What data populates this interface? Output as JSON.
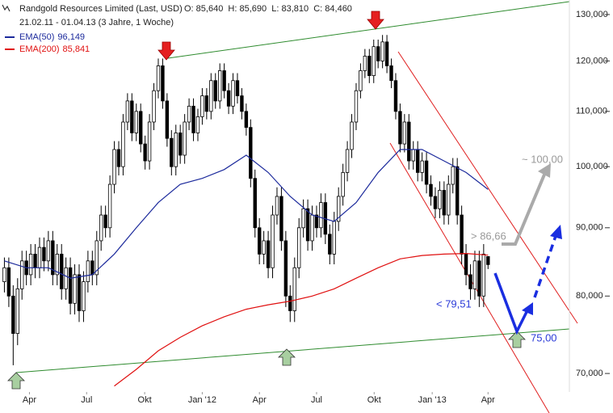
{
  "chart_data": {
    "type": "candlestick",
    "header": {
      "title": "Randgold Resources Limited (Last, USD)",
      "ohlc": "O: 85,640  H: 85,690  L: 83,810  C: 84,460",
      "date_range": "21.02.11 - 01.04.13 (3 Jahre, 1 Woche)"
    },
    "log_scale": true,
    "ylim": [
      67800,
      133300
    ],
    "yticks": [
      {
        "value": 70000,
        "label": "70,000"
      },
      {
        "value": 80000,
        "label": "80,000"
      },
      {
        "value": 90000,
        "label": "90,000"
      },
      {
        "value": 100000,
        "label": "100,000"
      },
      {
        "value": 110000,
        "label": "110,000"
      },
      {
        "value": 120000,
        "label": "120,000"
      },
      {
        "value": 130000,
        "label": "130,000"
      }
    ],
    "xlim": [
      -1,
      128.5
    ],
    "xticks": [
      {
        "value": 5.7,
        "label": "Apr"
      },
      {
        "value": 18.7,
        "label": "Jul"
      },
      {
        "value": 31.9,
        "label": "Okt"
      },
      {
        "value": 45,
        "label": "Jan '12"
      },
      {
        "value": 58,
        "label": "Apr"
      },
      {
        "value": 71,
        "label": "Jul"
      },
      {
        "value": 84.1,
        "label": "Okt"
      },
      {
        "value": 97.3,
        "label": "Jan '13"
      },
      {
        "value": 110,
        "label": "Apr"
      }
    ],
    "open": [
      82000,
      84000,
      80000,
      75000,
      81000,
      85000,
      83000,
      86000,
      84000,
      87000,
      85000,
      88000,
      83000,
      86000,
      81000,
      84000,
      79000,
      83000,
      78000,
      82000,
      85000,
      83000,
      88000,
      92000,
      90000,
      97000,
      103000,
      100000,
      108000,
      112000,
      106000,
      110000,
      104000,
      101000,
      108000,
      114000,
      119000,
      112000,
      105000,
      100000,
      106000,
      102000,
      108000,
      111000,
      106000,
      109000,
      113000,
      110000,
      116000,
      112000,
      118000,
      114000,
      111000,
      116000,
      113000,
      110000,
      107000,
      98000,
      90000,
      86000,
      88000,
      84000,
      92000,
      95000,
      88000,
      80000,
      78000,
      84000,
      90000,
      93000,
      88000,
      92000,
      90000,
      94000,
      89000,
      86000,
      91000,
      95000,
      99000,
      103000,
      108000,
      114000,
      118000,
      121000,
      117000,
      123000,
      120000,
      124000,
      119000,
      116000,
      110000,
      104000,
      108000,
      101000,
      103000,
      99000,
      101000,
      97000,
      95000,
      93000,
      96000,
      92000,
      97000,
      100000,
      92000,
      86000,
      83000,
      81000,
      85000,
      80000,
      85640
    ],
    "high": [
      85500,
      85500,
      81500,
      82500,
      86500,
      86500,
      87500,
      87500,
      88500,
      88500,
      89500,
      89500,
      87500,
      87500,
      85500,
      85500,
      84500,
      84500,
      83500,
      86500,
      86500,
      89500,
      93500,
      93500,
      98500,
      104500,
      104500,
      109500,
      113500,
      113500,
      111500,
      111500,
      105500,
      109500,
      115500,
      120500,
      120500,
      113500,
      106500,
      107500,
      107500,
      109500,
      112500,
      112500,
      110500,
      114500,
      114500,
      117500,
      117500,
      119500,
      119500,
      115500,
      117500,
      117500,
      114500,
      111500,
      108500,
      99500,
      91500,
      89500,
      89500,
      93500,
      96500,
      96500,
      89500,
      81500,
      85500,
      91500,
      94500,
      94500,
      93500,
      93500,
      95500,
      95500,
      90500,
      92500,
      96500,
      100500,
      104500,
      109500,
      115500,
      119500,
      122500,
      122500,
      124500,
      124500,
      125500,
      125500,
      120500,
      117500,
      111500,
      109500,
      109500,
      104500,
      104500,
      102500,
      102500,
      98500,
      96500,
      97500,
      97500,
      98500,
      101500,
      101500,
      93500,
      87500,
      84500,
      86500,
      86500,
      87500,
      85690
    ],
    "low": [
      80500,
      78500,
      71000,
      73500,
      79500,
      81500,
      81500,
      82500,
      82500,
      83500,
      83500,
      81500,
      81500,
      79500,
      79500,
      77500,
      77500,
      76500,
      76500,
      80500,
      81500,
      81500,
      86500,
      88500,
      88500,
      95500,
      98500,
      98500,
      106500,
      104500,
      104500,
      102500,
      99500,
      99500,
      106500,
      112500,
      110500,
      103500,
      98500,
      98500,
      100500,
      100500,
      106500,
      104500,
      104500,
      107500,
      108500,
      108500,
      110500,
      110500,
      112500,
      109500,
      109500,
      111500,
      108500,
      105500,
      96500,
      88500,
      84500,
      84500,
      82500,
      82500,
      90500,
      86500,
      78500,
      76500,
      76500,
      82500,
      88500,
      86500,
      86500,
      88500,
      88500,
      87500,
      84500,
      84500,
      89500,
      93500,
      97500,
      101500,
      106500,
      112500,
      116500,
      115500,
      115500,
      118500,
      118500,
      117500,
      114500,
      108500,
      102500,
      102500,
      99500,
      99500,
      97500,
      97500,
      95500,
      93500,
      91500,
      91500,
      90500,
      90500,
      95500,
      90500,
      84500,
      81500,
      79500,
      79500,
      78500,
      78500,
      83810
    ],
    "close": [
      84000,
      80000,
      75000,
      81000,
      85000,
      83000,
      86000,
      84000,
      87000,
      85000,
      88000,
      83000,
      86000,
      81000,
      84000,
      79000,
      83000,
      78000,
      82000,
      85000,
      83000,
      88000,
      92000,
      90000,
      97000,
      103000,
      100000,
      108000,
      112000,
      106000,
      110000,
      104000,
      101000,
      108000,
      114000,
      119000,
      112000,
      105000,
      100000,
      106000,
      102000,
      108000,
      111000,
      106000,
      109000,
      113000,
      110000,
      116000,
      112000,
      118000,
      114000,
      111000,
      116000,
      113000,
      110000,
      107000,
      98000,
      90000,
      86000,
      88000,
      84000,
      92000,
      95000,
      88000,
      80000,
      78000,
      84000,
      90000,
      93000,
      88000,
      92000,
      90000,
      94000,
      89000,
      86000,
      91000,
      95000,
      99000,
      103000,
      108000,
      114000,
      118000,
      121000,
      117000,
      123000,
      120000,
      124000,
      119000,
      116000,
      110000,
      104000,
      108000,
      101000,
      103000,
      99000,
      101000,
      97000,
      95000,
      93000,
      96000,
      92000,
      97000,
      100000,
      92000,
      86000,
      83000,
      81000,
      85000,
      80000,
      86000,
      84460
    ],
    "indicators": {
      "x": [
        0,
        5,
        10,
        15,
        20,
        25,
        30,
        35,
        40,
        45,
        50,
        55,
        60,
        65,
        70,
        75,
        80,
        85,
        90,
        95,
        100,
        105,
        110
      ],
      "series": [
        {
          "name": "EMA(50)",
          "last_label": "96,149",
          "color": "#1c2a9c",
          "values": [
            85000,
            84000,
            84000,
            82500,
            83000,
            86000,
            90000,
            94000,
            97000,
            98000,
            99500,
            102000,
            99000,
            95000,
            92000,
            91000,
            94000,
            99000,
            103000,
            103000,
            101000,
            99000,
            96149
          ]
        },
        {
          "name": "EMA(200)",
          "last_label": "85,841",
          "color": "#e01010",
          "values": [
            null,
            null,
            null,
            null,
            null,
            68500,
            70500,
            72800,
            74500,
            76000,
            77200,
            78200,
            78800,
            79300,
            80000,
            81000,
            82500,
            84000,
            85300,
            85800,
            86000,
            86100,
            85841
          ]
        }
      ]
    },
    "annotations": {
      "upper_target": "> 86,66",
      "far_target": "~ 100,00",
      "lower_target": "< 79,51",
      "support": "75,00"
    }
  }
}
